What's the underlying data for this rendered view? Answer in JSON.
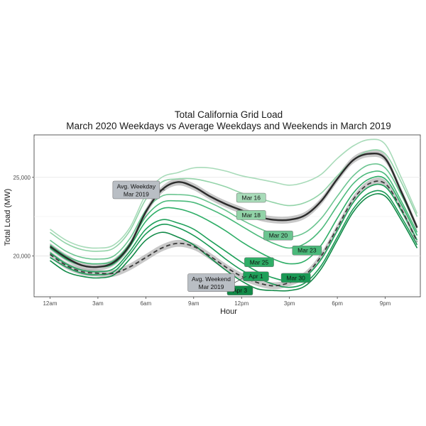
{
  "chart_data": {
    "type": "line",
    "title": "Total California Grid Load",
    "subtitle": "March 2020 Weekdays vs Average Weekdays and Weekends in March 2019",
    "xlabel": "Hour",
    "ylabel": "Total Load (MW)",
    "xlim": [
      -1,
      23.2
    ],
    "ylim": [
      17400,
      27700
    ],
    "x_ticks": [
      {
        "hour": 0,
        "label": "12am"
      },
      {
        "hour": 3,
        "label": "3am"
      },
      {
        "hour": 6,
        "label": "6am"
      },
      {
        "hour": 9,
        "label": "9am"
      },
      {
        "hour": 12,
        "label": "12pm"
      },
      {
        "hour": 15,
        "label": "3pm"
      },
      {
        "hour": 18,
        "label": "6pm"
      },
      {
        "hour": 21,
        "label": "9pm"
      }
    ],
    "y_ticks": [
      {
        "value": 20000,
        "label": "20,000"
      },
      {
        "value": 25000,
        "label": "25,000"
      }
    ],
    "grid": true,
    "hours": [
      0,
      1,
      2,
      3,
      4,
      5,
      6,
      7,
      8,
      9,
      10,
      11,
      12,
      13,
      14,
      15,
      16,
      17,
      18,
      19,
      20,
      21,
      22,
      23
    ],
    "series": [
      {
        "name": "Mar 16",
        "color": "#a8dbb9",
        "label_hour": 12.6,
        "label_value": 23700,
        "values": [
          21700,
          21000,
          20600,
          20500,
          20700,
          21800,
          23900,
          25000,
          25300,
          25600,
          25600,
          25400,
          25100,
          24900,
          24700,
          24500,
          24700,
          25200,
          26200,
          27000,
          27400,
          27100,
          25000,
          22700
        ]
      },
      {
        "name": "Mar 18",
        "color": "#92d3a8",
        "label_hour": 12.6,
        "label_value": 22600,
        "values": [
          21500,
          20800,
          20400,
          20300,
          20500,
          21600,
          23600,
          24700,
          24900,
          24900,
          24700,
          24400,
          24000,
          23700,
          23400,
          23200,
          23400,
          24000,
          25100,
          26100,
          26700,
          26500,
          24700,
          22500
        ]
      },
      {
        "name": "Mar 20",
        "color": "#6cc591",
        "label_hour": 14.3,
        "label_value": 21300,
        "values": [
          21000,
          20300,
          19900,
          19800,
          20000,
          21100,
          22900,
          23800,
          23900,
          23800,
          23400,
          22900,
          22300,
          21800,
          21400,
          21200,
          21500,
          22400,
          23800,
          25100,
          25800,
          25600,
          23900,
          21800
        ]
      },
      {
        "name": "Mar 23",
        "color": "#4ab97a",
        "label_hour": 16.1,
        "label_value": 20350,
        "values": [
          20700,
          20000,
          19600,
          19500,
          19700,
          20800,
          22500,
          23400,
          23500,
          23400,
          23000,
          22500,
          21900,
          21300,
          20800,
          20500,
          20800,
          21700,
          23200,
          24600,
          25300,
          25200,
          23500,
          21500
        ]
      },
      {
        "name": "Mar 25",
        "color": "#2fae67",
        "label_hour": 13.1,
        "label_value": 19600,
        "values": [
          20500,
          19800,
          19400,
          19300,
          19500,
          20600,
          22200,
          23000,
          23000,
          22700,
          22200,
          21600,
          20900,
          20300,
          19800,
          19500,
          19700,
          20700,
          22400,
          24000,
          24900,
          24900,
          23300,
          21300
        ]
      },
      {
        "name": "Apr 1",
        "color": "#1fa05a",
        "label_hour": 12.9,
        "label_value": 18700,
        "values": [
          20200,
          19500,
          19100,
          19000,
          19200,
          20300,
          21700,
          22300,
          22100,
          21700,
          21000,
          20300,
          19600,
          19000,
          18600,
          18400,
          18700,
          19800,
          21600,
          23400,
          24400,
          24400,
          22900,
          21000
        ]
      },
      {
        "name": "Mar 30",
        "color": "#1a9955",
        "label_hour": 15.4,
        "label_value": 18600,
        "values": [
          19900,
          19300,
          18900,
          18800,
          19000,
          20100,
          21400,
          22000,
          21800,
          21300,
          20600,
          19800,
          19100,
          18600,
          18200,
          18000,
          18300,
          19400,
          21200,
          23000,
          24000,
          24000,
          22500,
          20700
        ]
      },
      {
        "name": "Apr 3",
        "color": "#128a48",
        "label_hour": 11.9,
        "label_value": 17800,
        "values": [
          19700,
          19000,
          18700,
          18600,
          18800,
          19800,
          21000,
          21500,
          21200,
          20700,
          19900,
          19100,
          18400,
          17900,
          17800,
          17800,
          18100,
          19200,
          21000,
          22800,
          23800,
          23800,
          22300,
          20500
        ]
      }
    ],
    "reference_series": [
      {
        "name": "Avg. Weekday",
        "sublabel": "Mar 2019",
        "style": "solid",
        "color": "#2b2b2b",
        "label_hour": 5.4,
        "label_value": 24200,
        "values": [
          20600,
          19900,
          19400,
          19300,
          19600,
          20700,
          22800,
          24200,
          24700,
          24400,
          23800,
          23300,
          22900,
          22500,
          22300,
          22300,
          22600,
          23500,
          24900,
          26100,
          26500,
          26200,
          24100,
          21800
        ]
      },
      {
        "name": "Avg. Weekend",
        "sublabel": "Mar 2019",
        "style": "dashed",
        "color": "#3a3a3a",
        "label_hour": 10.1,
        "label_value": 18300,
        "values": [
          20100,
          19400,
          19000,
          18900,
          18900,
          19300,
          19900,
          20500,
          20800,
          20600,
          20000,
          19300,
          18700,
          18300,
          18100,
          18300,
          18800,
          20000,
          21800,
          23600,
          24600,
          24600,
          23000,
          20900
        ]
      }
    ]
  }
}
